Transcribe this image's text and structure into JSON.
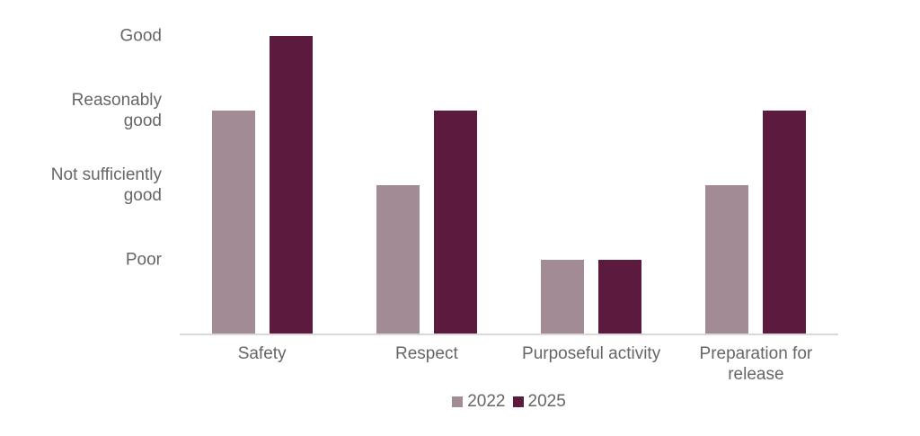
{
  "chart_data": {
    "type": "bar",
    "title": "",
    "categories": [
      "Safety",
      "Respect",
      "Purposeful activity",
      "Preparation for\nrelease"
    ],
    "series": [
      {
        "name": "2022",
        "color": "#A28B94",
        "values": [
          3,
          2,
          1,
          2
        ],
        "value_labels": [
          "Reasonably good",
          "Not sufficiently good",
          "Poor",
          "Not sufficiently good"
        ]
      },
      {
        "name": "2025",
        "color": "#5C1A3F",
        "values": [
          4,
          3,
          1,
          3
        ],
        "value_labels": [
          "Good",
          "Reasonably good",
          "Poor",
          "Reasonably good"
        ]
      }
    ],
    "y_axis": {
      "min": 0,
      "max": 4,
      "ticks": [
        {
          "value": 4,
          "label": "Good"
        },
        {
          "value": 3,
          "label": "Reasonably\ngood"
        },
        {
          "value": 2,
          "label": "Not sufficiently\ngood"
        },
        {
          "value": 1,
          "label": "Poor"
        }
      ]
    },
    "legend": {
      "position": "bottom",
      "entries": [
        {
          "label": "2022",
          "color": "#A28B94"
        },
        {
          "label": "2025",
          "color": "#5C1A3F"
        }
      ]
    },
    "grid": false,
    "axis_line_color": "#D9D9D9",
    "text_color": "#666666",
    "background": "#FFFFFF"
  }
}
